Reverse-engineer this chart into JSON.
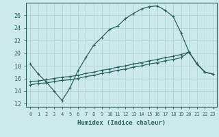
{
  "xlabel": "Humidex (Indice chaleur)",
  "background_color": "#cdeaea",
  "grid_color": "#b0d4d4",
  "line_color": "#2a6060",
  "xlim": [
    -0.5,
    23.5
  ],
  "ylim": [
    11.5,
    28.0
  ],
  "yticks": [
    12,
    14,
    16,
    18,
    20,
    22,
    24,
    26
  ],
  "xticks": [
    0,
    1,
    2,
    3,
    4,
    5,
    6,
    7,
    8,
    9,
    10,
    11,
    12,
    13,
    14,
    15,
    16,
    17,
    18,
    19,
    20,
    21,
    22,
    23
  ],
  "line1_x": [
    0,
    1,
    2,
    3,
    4,
    5,
    6,
    7,
    8,
    9,
    10,
    11,
    12,
    13,
    14,
    15,
    16,
    17,
    18,
    19,
    20,
    21,
    22,
    23
  ],
  "line1_y": [
    18.3,
    16.7,
    15.5,
    14.0,
    12.5,
    14.5,
    17.2,
    19.3,
    21.3,
    22.5,
    23.8,
    24.3,
    25.5,
    26.3,
    27.0,
    27.4,
    27.5,
    26.8,
    25.8,
    23.2,
    20.2,
    18.3,
    17.0,
    16.7
  ],
  "line2_x": [
    0,
    1,
    2,
    3,
    4,
    5,
    6,
    7,
    8,
    9,
    10,
    11,
    12,
    13,
    14,
    15,
    16,
    17,
    18,
    19,
    20,
    21,
    22,
    23
  ],
  "line2_y": [
    15.0,
    15.2,
    15.3,
    15.5,
    15.7,
    15.8,
    16.0,
    16.3,
    16.5,
    16.8,
    17.0,
    17.3,
    17.5,
    17.8,
    18.0,
    18.3,
    18.5,
    18.8,
    19.0,
    19.3,
    20.2,
    18.3,
    17.0,
    16.7
  ],
  "line3_x": [
    0,
    1,
    2,
    3,
    4,
    5,
    6,
    7,
    8,
    9,
    10,
    11,
    12,
    13,
    14,
    15,
    16,
    17,
    18,
    19,
    20,
    21,
    22,
    23
  ],
  "line3_y": [
    15.5,
    15.6,
    15.8,
    16.0,
    16.2,
    16.3,
    16.5,
    16.8,
    17.0,
    17.3,
    17.5,
    17.8,
    18.0,
    18.3,
    18.5,
    18.8,
    19.0,
    19.3,
    19.5,
    19.8,
    20.2,
    18.3,
    17.0,
    16.7
  ]
}
